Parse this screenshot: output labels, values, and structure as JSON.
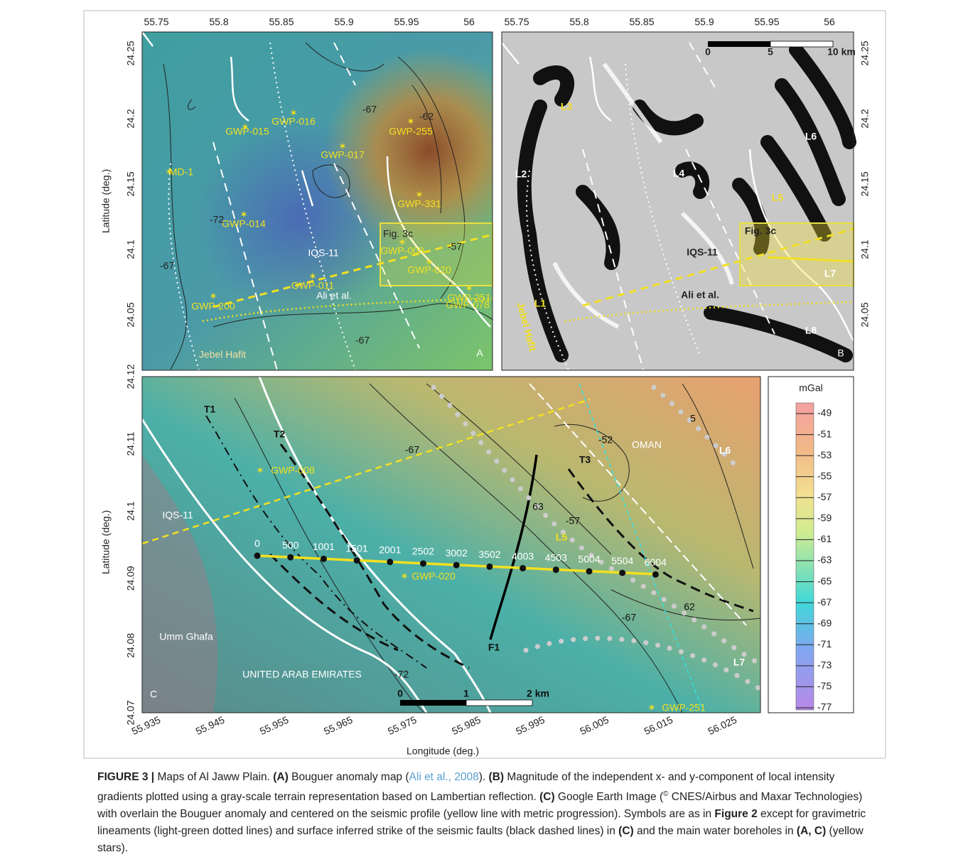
{
  "panel_a": {
    "letter": "A",
    "x_ticks": [
      55.75,
      55.8,
      55.85,
      55.9,
      55.95,
      56
    ],
    "y_ticks": [
      24.25,
      24.2,
      24.15,
      24.1,
      24.05
    ],
    "y_label": "Latitude (deg.)",
    "labels": [
      "GWP-015",
      "GWP-016",
      "GWP-017",
      "GWP-255",
      "MD-1",
      "GWP-014",
      "GWP-331",
      "Fig. 3c",
      "IQS-11",
      "GWP-008",
      "GWP-020",
      "GWP-011",
      "Ali et al.",
      "GWP-200",
      "GWP-251",
      "GWP-078",
      "Jebel Hafit",
      "-67",
      "-72",
      "-67",
      "-67",
      "-62",
      "-57"
    ]
  },
  "panel_b": {
    "letter": "B",
    "x_ticks": [
      55.75,
      55.8,
      55.85,
      55.9,
      55.95,
      56
    ],
    "y_ticks": [
      24.25,
      24.2,
      24.15,
      24.1,
      24.05
    ],
    "scale": [
      "0",
      "5",
      "10 km"
    ],
    "labels": [
      "L3",
      "L2",
      "L4",
      "L6",
      "L5",
      "L1",
      "L7",
      "L8",
      "Fig. 3c",
      "IQS-11",
      "Ali et al.",
      "Jebel Hafit"
    ]
  },
  "panel_c": {
    "letter": "C",
    "x_ticks": [
      55.935,
      55.945,
      55.955,
      55.965,
      55.975,
      55.985,
      55.995,
      56.005,
      56.015,
      56.025
    ],
    "y_ticks": [
      24.12,
      24.11,
      24.1,
      24.09,
      24.08,
      24.07
    ],
    "x_label": "Longitude (deg.)",
    "y_label": "Latitude (deg.)",
    "profile": [
      0,
      500,
      1001,
      1501,
      2001,
      2502,
      3002,
      3502,
      4003,
      4503,
      5004,
      5504,
      6004
    ],
    "scale": [
      "0",
      "1",
      "2 km"
    ],
    "labels": [
      "T1",
      "T2",
      "T3",
      "F1",
      "GWP-008",
      "IQS-11",
      "GWP-020",
      "GWP-251",
      "L5",
      "L6",
      "L7",
      "OMAN",
      "UNITED ARAB EMIRATES",
      "Umm Ghafa",
      "-52",
      "-57",
      "-67",
      "-67",
      "62",
      "63",
      "5",
      "-72"
    ]
  },
  "colorbar": {
    "unit": "mGal",
    "ticks": [
      -49,
      -51,
      -53,
      -55,
      -57,
      -59,
      -61,
      -63,
      -65,
      -67,
      -69,
      -71,
      -73,
      -75,
      -77
    ]
  },
  "caption": {
    "parts": [
      "FIGURE 3 |",
      " Maps of Al Jaww Plain. ",
      "(A)",
      " Bouguer anomaly map (",
      "Ali et al., 2008",
      "). ",
      "(B)",
      " Magnitude of the independent x- and y-component of local intensity gradients plotted using a gray-scale terrain representation based on Lambertian reflection. ",
      "(C)",
      " Google Earth Image (",
      "©",
      " CNES/Airbus and Maxar Technologies) with overlain the Bouguer anomaly and centered on the seismic profile (yellow line with metric progression). Symbols are as in ",
      "Figure 2",
      " except for gravimetric lineaments (light-green dotted lines) and surface inferred strike of the seismic faults (black dashed lines) in ",
      "(C)",
      " and the main water boreholes in ",
      "(A, C)",
      " (yellow stars)."
    ]
  }
}
